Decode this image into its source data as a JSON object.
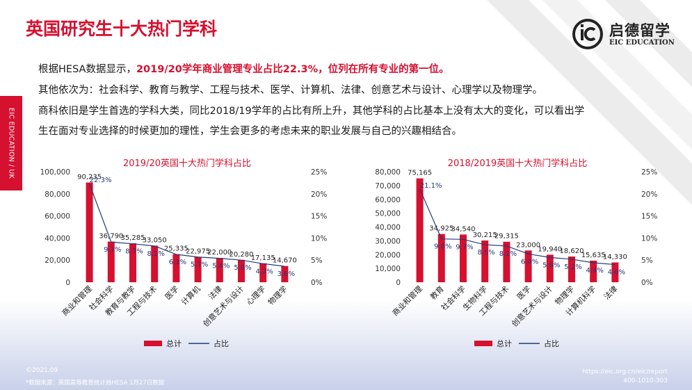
{
  "header": {
    "title": "英国研究生十大热门学科",
    "logo_cn": "启德留学",
    "logo_en": "EIC EDUCATION"
  },
  "side_tab": "EIC EDUCATION / UK",
  "intro": {
    "line1_prefix": "根据HESA数据显示，",
    "line1_highlight": "2019/20学年商业管理专业占比22.3%，位列在所有专业的第一位。",
    "line2": "其他依次为：社会科学、教育与教学、工程与技术、医学、计算机、法律、创意艺术与设计、心理学以及物理学。",
    "line3": "商科依旧是学生首选的学科大类，同比2018/19学年的占比有所上升，其他学科的占比基本上没有太大的变化，可以看出学",
    "line4": "生在面对专业选择的时候更加的理性，学生会更多的考虑未来的职业发展与自己的兴趣相结合。"
  },
  "footer": {
    "date": "©2021.09",
    "source": "*数据来源：英国高等教育统计局HESA 1月27日数据",
    "url": "https://eic.org.cn/eic/report",
    "phone": "400-1010-303"
  },
  "colors": {
    "accent": "#d6102f",
    "line": "#1f3a7a"
  },
  "chart_data": [
    {
      "type": "bar",
      "title": "2019/20英国十大热门学科占比",
      "categories": [
        "商业和管理",
        "社会科学",
        "教育与教学",
        "工程与技术",
        "医学",
        "计算机",
        "法律",
        "创意艺术与设计",
        "心理学",
        "物理学"
      ],
      "series": [
        {
          "name": "总计",
          "type": "bar",
          "values": [
            90235,
            36790,
            35285,
            33050,
            25335,
            22975,
            22000,
            20280,
            17135,
            14670
          ],
          "labels": [
            "90,235",
            "36,790",
            "35,285",
            "33,050",
            "25,335",
            "22,975",
            "22,000",
            "20,280",
            "17,135",
            "14,670"
          ]
        },
        {
          "name": "占比",
          "type": "line",
          "axis": "right",
          "values": [
            22.3,
            9.1,
            8.7,
            8.2,
            6.3,
            5.7,
            5.4,
            5.0,
            4.2,
            3.6
          ],
          "labels": [
            "22.3%",
            "9.1%",
            "8.7%",
            "8.2%",
            "6.3%",
            "5.7%",
            "5.4%",
            "5.0%",
            "4.2%",
            "3.6%"
          ]
        }
      ],
      "y_left": {
        "min": 0,
        "max": 100000,
        "ticks": [
          "0",
          "20,000",
          "40,000",
          "60,000",
          "80,000",
          "100,000"
        ]
      },
      "y_right": {
        "min": 0,
        "max": 25,
        "ticks": [
          "0%",
          "5%",
          "10%",
          "15%",
          "20%",
          "25%"
        ]
      },
      "legend": "bottom"
    },
    {
      "type": "bar",
      "title": "2018/2019英国十大热门学科占比",
      "categories": [
        "商业和管理",
        "教育",
        "社会科学",
        "生物科学",
        "工程与技术",
        "医学",
        "创意艺术与设计",
        "物理学",
        "计算机科学",
        "法律"
      ],
      "series": [
        {
          "name": "总计",
          "type": "bar",
          "values": [
            75165,
            34925,
            34540,
            30215,
            29315,
            23000,
            19940,
            18620,
            15635,
            14330
          ],
          "labels": [
            "75,165",
            "34,925",
            "34,540",
            "30,215",
            "29,315",
            "23,000",
            "19,940",
            "18,620",
            "15,635",
            "14,330"
          ]
        },
        {
          "name": "占比",
          "type": "line",
          "axis": "right",
          "values": [
            21.1,
            9.8,
            9.7,
            8.5,
            8.2,
            6.4,
            5.6,
            5.2,
            4.4,
            4.0
          ],
          "labels": [
            "21.1%",
            "9.8%",
            "9.7%",
            "8.5%",
            "8.2%",
            "6.4%",
            "5.6%",
            "5.2%",
            "4.4%",
            "4.0%"
          ]
        }
      ],
      "y_left": {
        "min": 0,
        "max": 80000,
        "ticks": [
          "0",
          "10,000",
          "20,000",
          "30,000",
          "40,000",
          "50,000",
          "60,000",
          "70,000",
          "80,000"
        ]
      },
      "y_right": {
        "min": 0,
        "max": 25,
        "ticks": [
          "0%",
          "5%",
          "10%",
          "15%",
          "20%",
          "25%"
        ]
      },
      "legend": "bottom"
    }
  ]
}
